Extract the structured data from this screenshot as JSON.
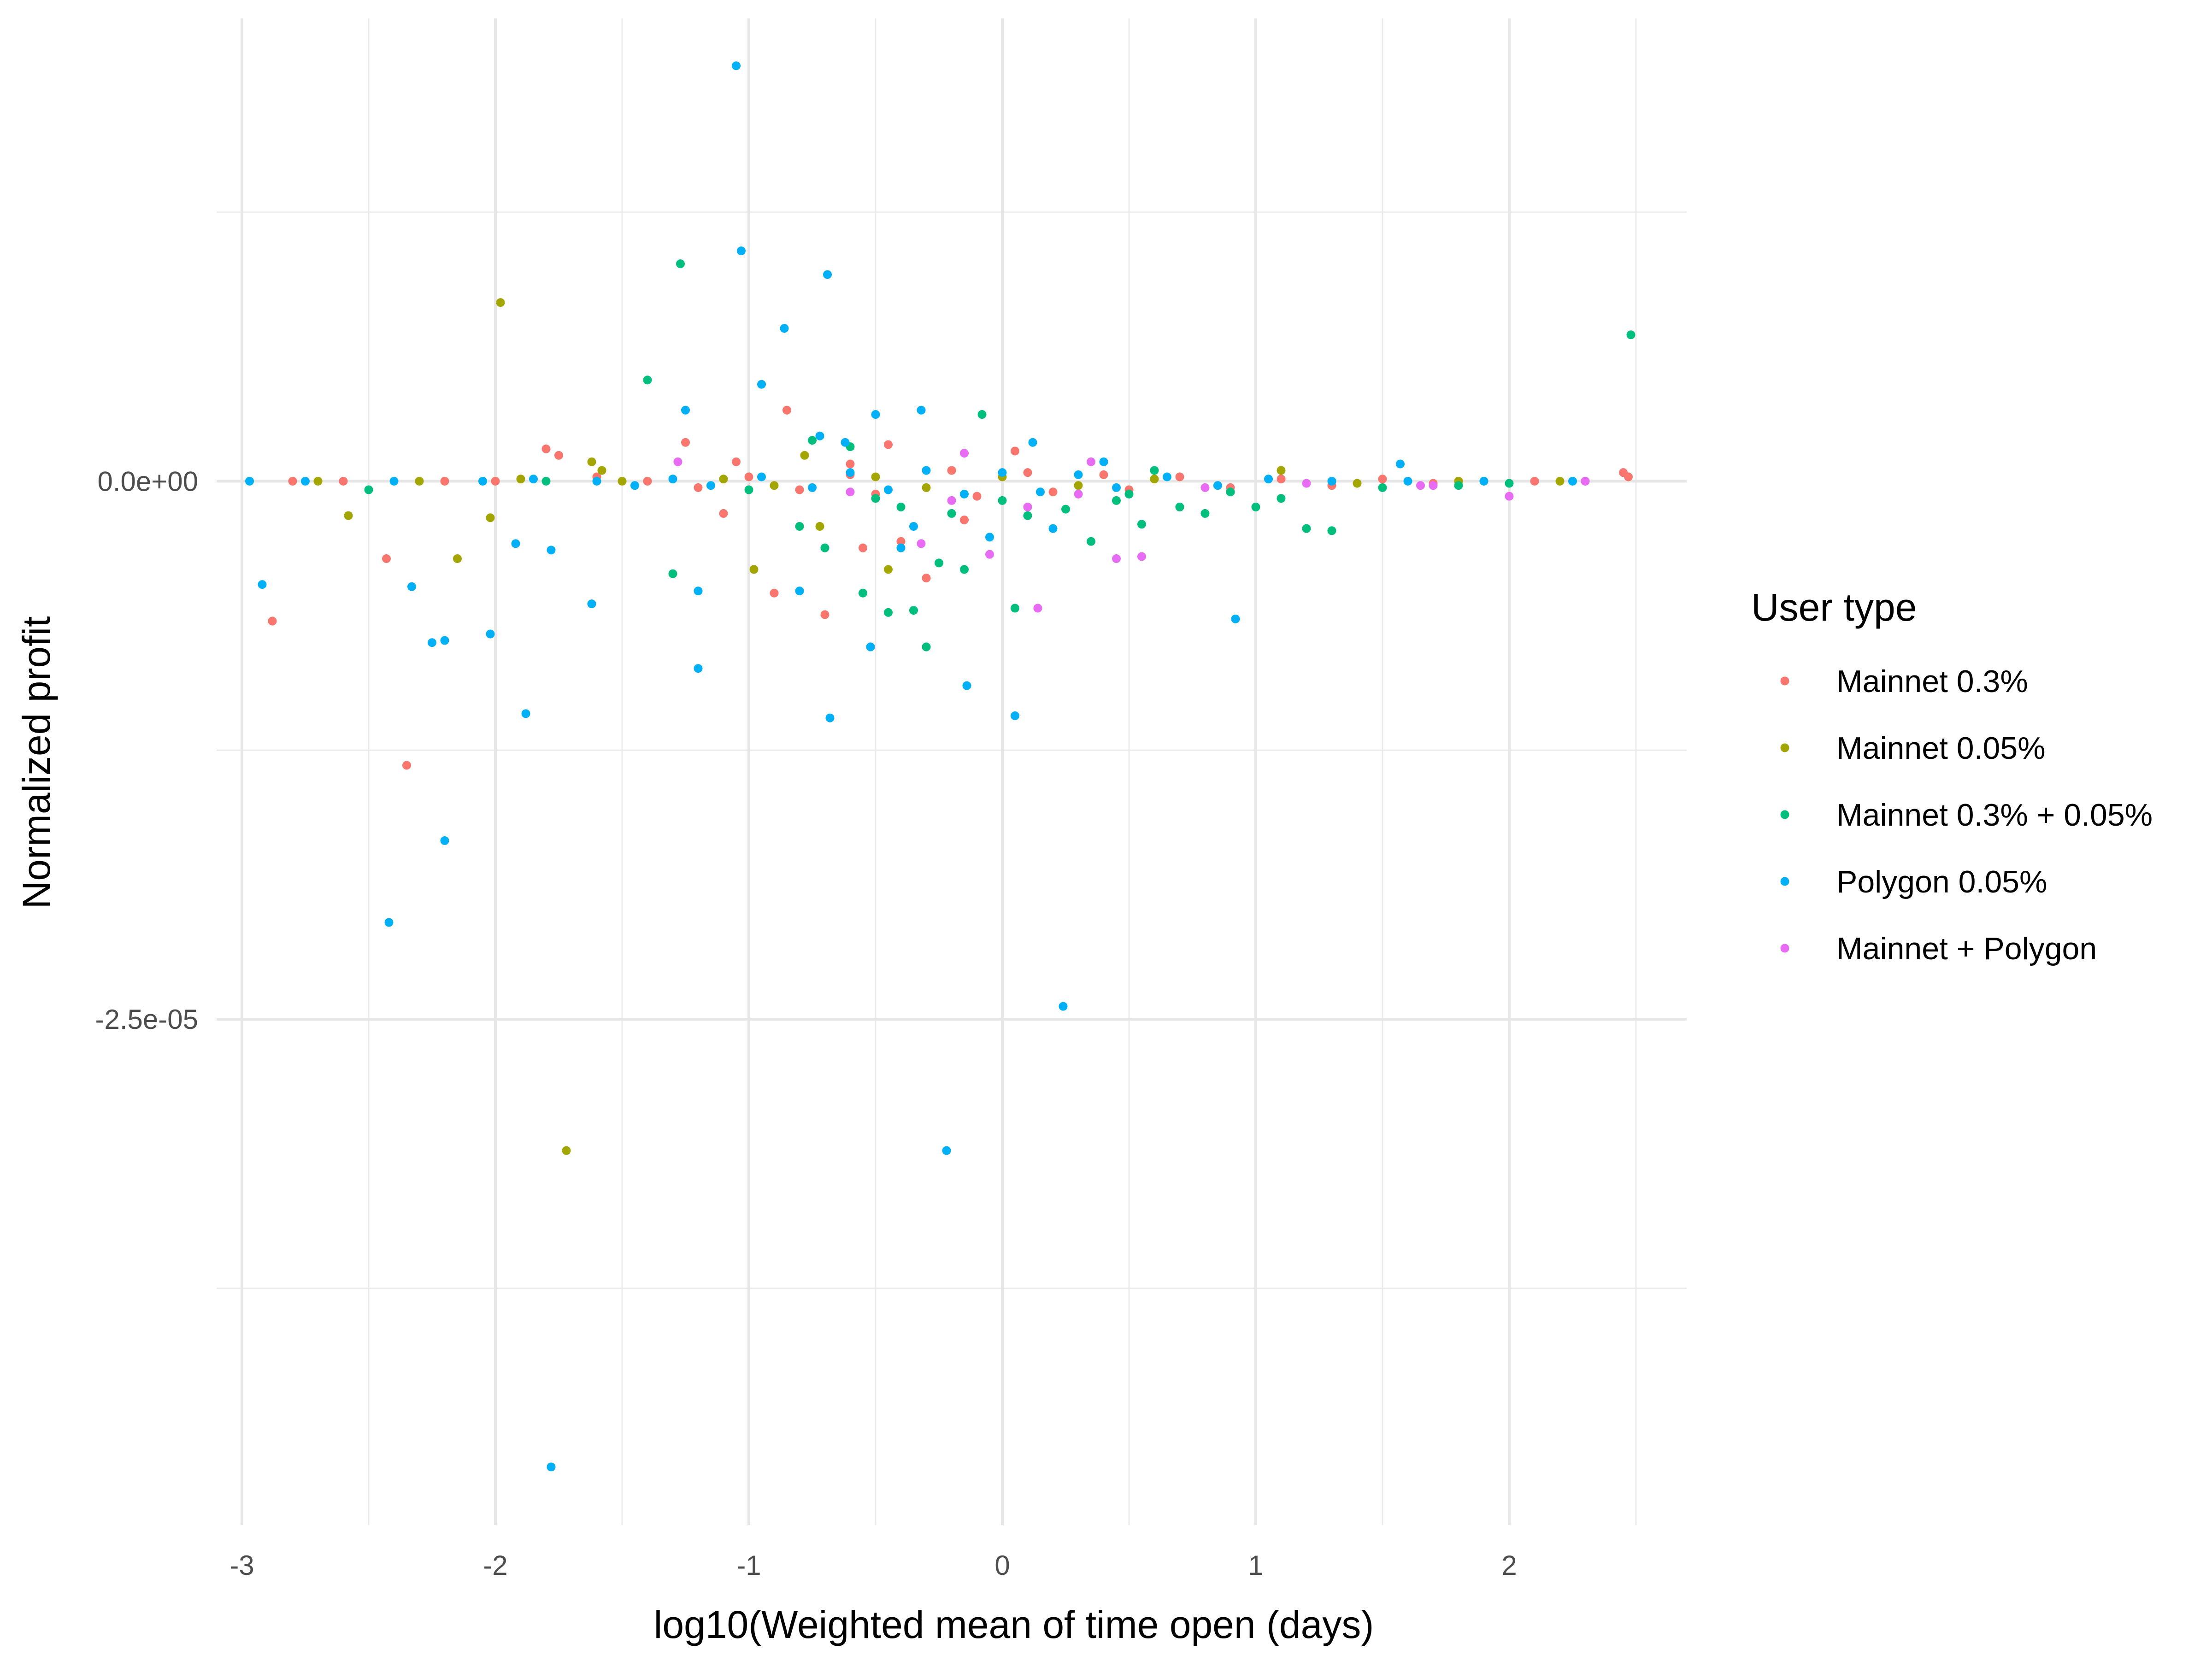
{
  "chart_data": {
    "type": "scatter",
    "title": "",
    "xlabel": "log10(Weighted mean of time open (days)",
    "ylabel": "Normalized profit",
    "xlim": [
      -3.1,
      2.7
    ],
    "ylim": [
      -4.85e-05,
      2.15e-05
    ],
    "grid": true,
    "x_ticks": [
      {
        "value": -3,
        "label": "-3"
      },
      {
        "value": -2,
        "label": "-2"
      },
      {
        "value": -1,
        "label": "-1"
      },
      {
        "value": 0,
        "label": "0"
      },
      {
        "value": 1,
        "label": "1"
      },
      {
        "value": 2,
        "label": "2"
      }
    ],
    "y_ticks": [
      {
        "value": 0,
        "label": "0.0e+00"
      },
      {
        "value": -2.5e-05,
        "label": "-2.5e-05"
      }
    ],
    "legend": {
      "title": "User type",
      "position": "right",
      "entries": [
        {
          "name": "Mainnet 0.3%",
          "color": "#F8766D"
        },
        {
          "name": "Mainnet 0.05%",
          "color": "#A3A500"
        },
        {
          "name": "Mainnet 0.3% + 0.05%",
          "color": "#00BF7D"
        },
        {
          "name": "Polygon 0.05%",
          "color": "#00B0F6"
        },
        {
          "name": "Mainnet + Polygon",
          "color": "#E76BF3"
        }
      ]
    },
    "series": [
      {
        "name": "Mainnet 0.3%",
        "color": "#F8766D",
        "points": [
          [
            -2.88,
            -6.5e-06
          ],
          [
            -2.35,
            -1.32e-05
          ],
          [
            -2.43,
            -3.6e-06
          ],
          [
            -1.8,
            1.5e-06
          ],
          [
            -1.75,
            1.2e-06
          ],
          [
            -0.9,
            -5.2e-06
          ],
          [
            -0.85,
            3.3e-06
          ],
          [
            -0.7,
            -6.2e-06
          ],
          [
            -1.25,
            1.8e-06
          ],
          [
            -1.1,
            -1.5e-06
          ],
          [
            -0.3,
            -4.5e-06
          ],
          [
            -0.4,
            -2.8e-06
          ],
          [
            -2.8,
            0.0
          ],
          [
            -2.6,
            0.0
          ],
          [
            -2.2,
            0.0
          ],
          [
            -2.0,
            0.0
          ],
          [
            -1.6,
            2e-07
          ],
          [
            -1.4,
            0.0
          ],
          [
            -1.2,
            -3e-07
          ],
          [
            -1.0,
            2e-07
          ],
          [
            -0.8,
            -4e-07
          ],
          [
            -0.6,
            3e-07
          ],
          [
            -0.5,
            -6e-07
          ],
          [
            -0.2,
            5e-07
          ],
          [
            -0.1,
            -7e-07
          ],
          [
            0.1,
            4e-07
          ],
          [
            0.2,
            -5e-07
          ],
          [
            0.4,
            3e-07
          ],
          [
            0.5,
            -4e-07
          ],
          [
            0.7,
            2e-07
          ],
          [
            0.9,
            -3e-07
          ],
          [
            1.1,
            1e-07
          ],
          [
            1.3,
            -2e-07
          ],
          [
            1.5,
            1e-07
          ],
          [
            1.7,
            -1e-07
          ],
          [
            1.9,
            0.0
          ],
          [
            2.1,
            0.0
          ],
          [
            2.3,
            0.0
          ],
          [
            2.45,
            4e-07
          ],
          [
            2.47,
            2e-07
          ],
          [
            -0.55,
            -3.1e-06
          ],
          [
            -0.15,
            -1.8e-06
          ],
          [
            0.05,
            1.4e-06
          ],
          [
            -0.6,
            8e-07
          ],
          [
            -1.05,
            9e-07
          ],
          [
            -0.45,
            1.7e-06
          ]
        ]
      },
      {
        "name": "Mainnet 0.05%",
        "color": "#A3A500",
        "points": [
          [
            -1.98,
            8.3e-06
          ],
          [
            -1.72,
            -3.11e-05
          ],
          [
            -2.58,
            -1.6e-06
          ],
          [
            -2.15,
            -3.6e-06
          ],
          [
            -2.02,
            -1.7e-06
          ],
          [
            -1.62,
            9e-07
          ],
          [
            -1.58,
            5e-07
          ],
          [
            -0.98,
            -4.1e-06
          ],
          [
            -0.72,
            -2.1e-06
          ],
          [
            -0.45,
            -4.1e-06
          ],
          [
            -0.78,
            1.2e-06
          ],
          [
            -2.7,
            0.0
          ],
          [
            -2.3,
            0.0
          ],
          [
            -1.9,
            1e-07
          ],
          [
            -1.5,
            0.0
          ],
          [
            -1.1,
            1e-07
          ],
          [
            -0.9,
            -2e-07
          ],
          [
            -0.5,
            2e-07
          ],
          [
            -0.3,
            -3e-07
          ],
          [
            0.0,
            2e-07
          ],
          [
            0.3,
            -2e-07
          ],
          [
            0.6,
            1e-07
          ],
          [
            1.1,
            5e-07
          ],
          [
            1.4,
            -1e-07
          ],
          [
            1.8,
            0.0
          ],
          [
            2.2,
            0.0
          ]
        ]
      },
      {
        "name": "Mainnet 0.3% + 0.05%",
        "color": "#00BF7D",
        "points": [
          [
            2.48,
            6.8e-06
          ],
          [
            -1.27,
            1.01e-05
          ],
          [
            -1.4,
            4.7e-06
          ],
          [
            -0.08,
            3.1e-06
          ],
          [
            -0.55,
            -5.2e-06
          ],
          [
            -0.45,
            -6.1e-06
          ],
          [
            -0.3,
            -7.7e-06
          ],
          [
            -0.35,
            -6e-06
          ],
          [
            0.05,
            -5.9e-06
          ],
          [
            -0.25,
            -3.8e-06
          ],
          [
            -0.15,
            -4.1e-06
          ],
          [
            -0.7,
            -3.1e-06
          ],
          [
            -0.8,
            -2.1e-06
          ],
          [
            -1.3,
            -4.3e-06
          ],
          [
            0.35,
            -2.8e-06
          ],
          [
            0.55,
            -2e-06
          ],
          [
            0.8,
            -1.5e-06
          ],
          [
            1.0,
            -1.2e-06
          ],
          [
            1.2,
            -2.2e-06
          ],
          [
            1.3,
            -2.3e-06
          ],
          [
            0.7,
            -1.2e-06
          ],
          [
            -0.6,
            1.6e-06
          ],
          [
            -0.4,
            -1.2e-06
          ],
          [
            -0.2,
            -1.5e-06
          ],
          [
            0.1,
            -1.6e-06
          ],
          [
            0.25,
            -1.3e-06
          ],
          [
            0.45,
            -9e-07
          ],
          [
            0.9,
            -5e-07
          ],
          [
            1.5,
            -3e-07
          ],
          [
            1.8,
            -2e-07
          ],
          [
            2.0,
            -1e-07
          ],
          [
            -2.5,
            -4e-07
          ],
          [
            -1.8,
            0.0
          ],
          [
            -1.0,
            -4e-07
          ],
          [
            -0.5,
            -8e-07
          ],
          [
            0.0,
            -9e-07
          ],
          [
            0.5,
            -6e-07
          ],
          [
            0.6,
            5e-07
          ],
          [
            1.1,
            -8e-07
          ],
          [
            -0.75,
            1.9e-06
          ]
        ]
      },
      {
        "name": "Polygon 0.05%",
        "color": "#00B0F6",
        "points": [
          [
            -1.05,
            1.93e-05
          ],
          [
            -1.03,
            1.07e-05
          ],
          [
            -0.69,
            9.6e-06
          ],
          [
            -0.86,
            7.1e-06
          ],
          [
            -0.95,
            4.5e-06
          ],
          [
            -1.25,
            3.3e-06
          ],
          [
            -0.5,
            3.1e-06
          ],
          [
            -0.32,
            3.3e-06
          ],
          [
            -2.92,
            -4.8e-06
          ],
          [
            -2.42,
            -2.05e-05
          ],
          [
            -2.2,
            -1.67e-05
          ],
          [
            -1.78,
            -4.58e-05
          ],
          [
            -0.22,
            -3.11e-05
          ],
          [
            0.24,
            -2.44e-05
          ],
          [
            -1.88,
            -1.08e-05
          ],
          [
            -0.68,
            -1.1e-05
          ],
          [
            0.05,
            -1.09e-05
          ],
          [
            -0.14,
            -9.5e-06
          ],
          [
            -1.2,
            -8.7e-06
          ],
          [
            -2.25,
            -7.5e-06
          ],
          [
            -2.2,
            -7.4e-06
          ],
          [
            -2.02,
            -7.1e-06
          ],
          [
            -0.52,
            -7.7e-06
          ],
          [
            -1.62,
            -5.7e-06
          ],
          [
            -2.33,
            -4.9e-06
          ],
          [
            -1.92,
            -2.9e-06
          ],
          [
            -1.78,
            -3.2e-06
          ],
          [
            -1.2,
            -5.1e-06
          ],
          [
            -0.8,
            -5.1e-06
          ],
          [
            -0.4,
            -3.1e-06
          ],
          [
            0.92,
            -6.4e-06
          ],
          [
            1.57,
            8e-07
          ],
          [
            -2.97,
            0.0
          ],
          [
            -2.75,
            0.0
          ],
          [
            -2.4,
            0.0
          ],
          [
            -2.05,
            0.0
          ],
          [
            -1.85,
            1e-07
          ],
          [
            -1.6,
            0.0
          ],
          [
            -1.45,
            -2e-07
          ],
          [
            -1.3,
            1e-07
          ],
          [
            -1.15,
            -2e-07
          ],
          [
            -0.95,
            2e-07
          ],
          [
            -0.75,
            -3e-07
          ],
          [
            -0.6,
            4e-07
          ],
          [
            -0.45,
            -4e-07
          ],
          [
            -0.3,
            5e-07
          ],
          [
            -0.15,
            -6e-07
          ],
          [
            0.0,
            4e-07
          ],
          [
            0.15,
            -5e-07
          ],
          [
            0.3,
            3e-07
          ],
          [
            0.45,
            -3e-07
          ],
          [
            0.65,
            2e-07
          ],
          [
            0.85,
            -2e-07
          ],
          [
            1.05,
            1e-07
          ],
          [
            1.3,
            0.0
          ],
          [
            1.6,
            0.0
          ],
          [
            1.9,
            0.0
          ],
          [
            2.25,
            0.0
          ],
          [
            -0.72,
            2.1e-06
          ],
          [
            -0.62,
            1.8e-06
          ],
          [
            0.12,
            1.8e-06
          ],
          [
            0.4,
            9e-07
          ],
          [
            -0.05,
            -2.6e-06
          ],
          [
            -0.35,
            -2.1e-06
          ],
          [
            0.2,
            -2.2e-06
          ]
        ]
      },
      {
        "name": "Mainnet + Polygon",
        "color": "#E76BF3",
        "points": [
          [
            0.14,
            -5.9e-06
          ],
          [
            -0.32,
            -2.9e-06
          ],
          [
            -0.05,
            -3.4e-06
          ],
          [
            -1.28,
            9e-07
          ],
          [
            -0.15,
            1.3e-06
          ],
          [
            0.35,
            9e-07
          ],
          [
            0.55,
            -3.5e-06
          ],
          [
            0.45,
            -3.6e-06
          ],
          [
            2.0,
            -7e-07
          ],
          [
            1.7,
            -2e-07
          ],
          [
            1.65,
            -2e-07
          ],
          [
            0.1,
            -1.2e-06
          ],
          [
            -0.2,
            -9e-07
          ],
          [
            0.3,
            -6e-07
          ],
          [
            0.8,
            -3e-07
          ],
          [
            1.2,
            -1e-07
          ],
          [
            2.3,
            0.0
          ],
          [
            -0.6,
            -5e-07
          ]
        ]
      }
    ]
  }
}
